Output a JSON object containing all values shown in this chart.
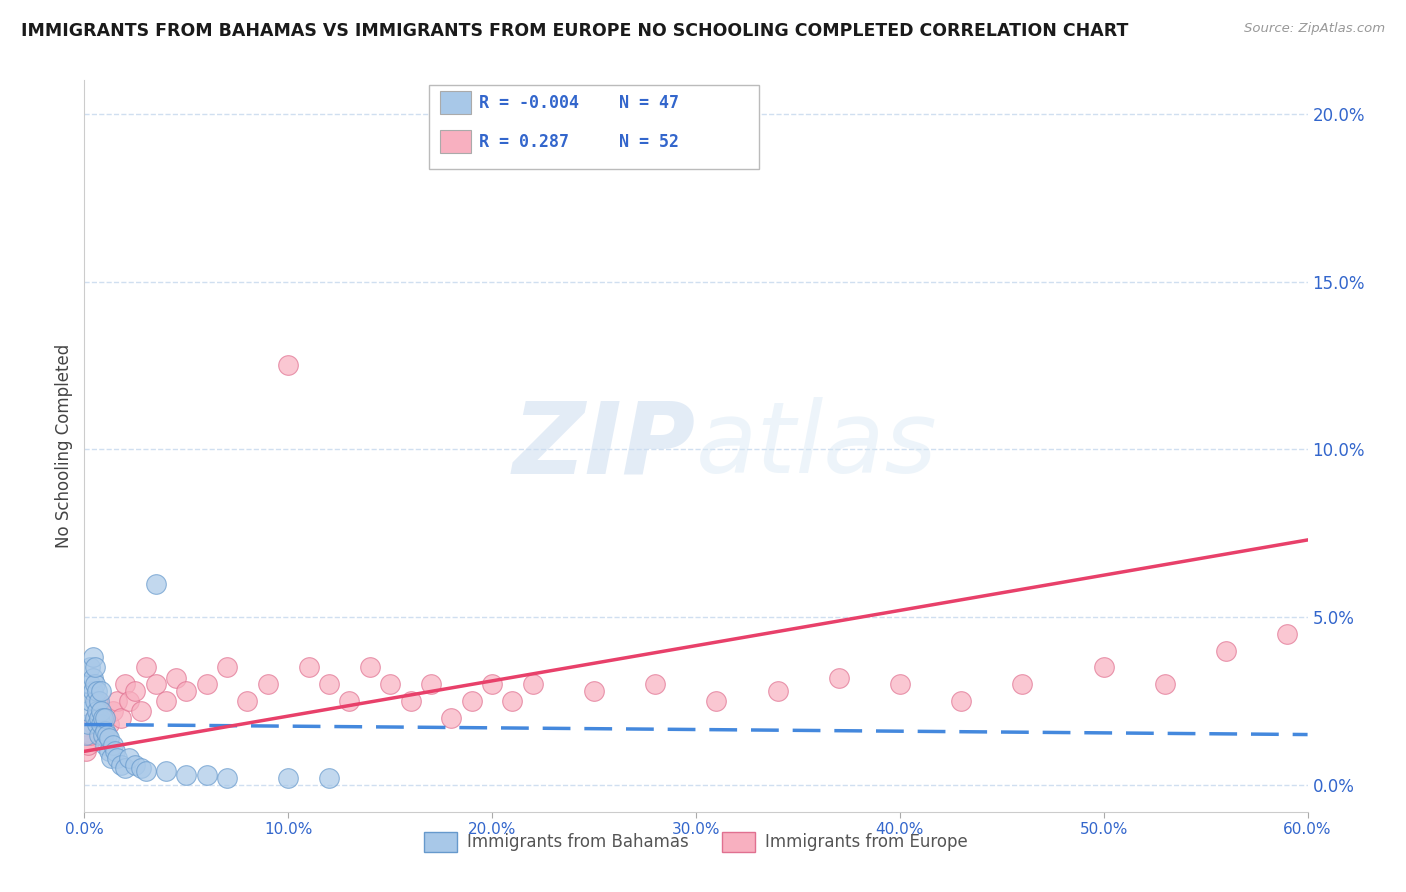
{
  "title": "IMMIGRANTS FROM BAHAMAS VS IMMIGRANTS FROM EUROPE NO SCHOOLING COMPLETED CORRELATION CHART",
  "source_text": "Source: ZipAtlas.com",
  "ylabel": "No Schooling Completed",
  "legend_series": [
    {
      "label": "Immigrants from Bahamas",
      "color": "#a8c8e8",
      "edge": "#6699cc",
      "R": "-0.004",
      "N": "47"
    },
    {
      "label": "Immigrants from Europe",
      "color": "#f8b0c0",
      "edge": "#e07090",
      "R": "0.287",
      "N": "52"
    }
  ],
  "legend_R_color": "#3366cc",
  "xmin": 0.0,
  "xmax": 0.6,
  "ymin": -0.008,
  "ymax": 0.21,
  "yticks": [
    0.0,
    0.05,
    0.1,
    0.15,
    0.2
  ],
  "ytick_labels": [
    "0.0%",
    "5.0%",
    "10.0%",
    "15.0%",
    "20.0%"
  ],
  "xticks": [
    0.0,
    0.1,
    0.2,
    0.3,
    0.4,
    0.5,
    0.6
  ],
  "xtick_labels": [
    "0.0%",
    "10.0%",
    "20.0%",
    "30.0%",
    "40.0%",
    "50.0%",
    "60.0%"
  ],
  "axis_tick_color": "#3366cc",
  "grid_color": "#d0dff0",
  "background_color": "#ffffff",
  "watermark_zip": "ZIP",
  "watermark_atlas": "atlas",
  "trend_blue_color": "#4488dd",
  "trend_blue_dashed": true,
  "trend_pink_color": "#e8406a",
  "bahamas_x": [
    0.001,
    0.002,
    0.002,
    0.003,
    0.003,
    0.003,
    0.004,
    0.004,
    0.004,
    0.005,
    0.005,
    0.005,
    0.005,
    0.006,
    0.006,
    0.006,
    0.007,
    0.007,
    0.007,
    0.008,
    0.008,
    0.008,
    0.009,
    0.009,
    0.01,
    0.01,
    0.01,
    0.011,
    0.012,
    0.012,
    0.013,
    0.014,
    0.015,
    0.016,
    0.018,
    0.02,
    0.022,
    0.025,
    0.028,
    0.03,
    0.035,
    0.04,
    0.05,
    0.06,
    0.07,
    0.1,
    0.12
  ],
  "bahamas_y": [
    0.015,
    0.018,
    0.022,
    0.025,
    0.03,
    0.035,
    0.028,
    0.032,
    0.038,
    0.02,
    0.025,
    0.03,
    0.035,
    0.018,
    0.022,
    0.028,
    0.015,
    0.02,
    0.025,
    0.018,
    0.022,
    0.028,
    0.015,
    0.02,
    0.012,
    0.016,
    0.02,
    0.015,
    0.01,
    0.014,
    0.008,
    0.012,
    0.01,
    0.008,
    0.006,
    0.005,
    0.008,
    0.006,
    0.005,
    0.004,
    0.06,
    0.004,
    0.003,
    0.003,
    0.002,
    0.002,
    0.002
  ],
  "europe_x": [
    0.001,
    0.002,
    0.003,
    0.004,
    0.005,
    0.006,
    0.007,
    0.008,
    0.009,
    0.01,
    0.012,
    0.014,
    0.016,
    0.018,
    0.02,
    0.022,
    0.025,
    0.028,
    0.03,
    0.035,
    0.04,
    0.045,
    0.05,
    0.06,
    0.07,
    0.08,
    0.09,
    0.1,
    0.11,
    0.12,
    0.13,
    0.14,
    0.15,
    0.16,
    0.17,
    0.18,
    0.19,
    0.2,
    0.21,
    0.22,
    0.25,
    0.28,
    0.31,
    0.34,
    0.37,
    0.4,
    0.43,
    0.46,
    0.5,
    0.53,
    0.56,
    0.59
  ],
  "europe_y": [
    0.01,
    0.012,
    0.015,
    0.018,
    0.02,
    0.025,
    0.022,
    0.018,
    0.015,
    0.02,
    0.018,
    0.022,
    0.025,
    0.02,
    0.03,
    0.025,
    0.028,
    0.022,
    0.035,
    0.03,
    0.025,
    0.032,
    0.028,
    0.03,
    0.035,
    0.025,
    0.03,
    0.125,
    0.035,
    0.03,
    0.025,
    0.035,
    0.03,
    0.025,
    0.03,
    0.02,
    0.025,
    0.03,
    0.025,
    0.03,
    0.028,
    0.03,
    0.025,
    0.028,
    0.032,
    0.03,
    0.025,
    0.03,
    0.035,
    0.03,
    0.04,
    0.045
  ]
}
